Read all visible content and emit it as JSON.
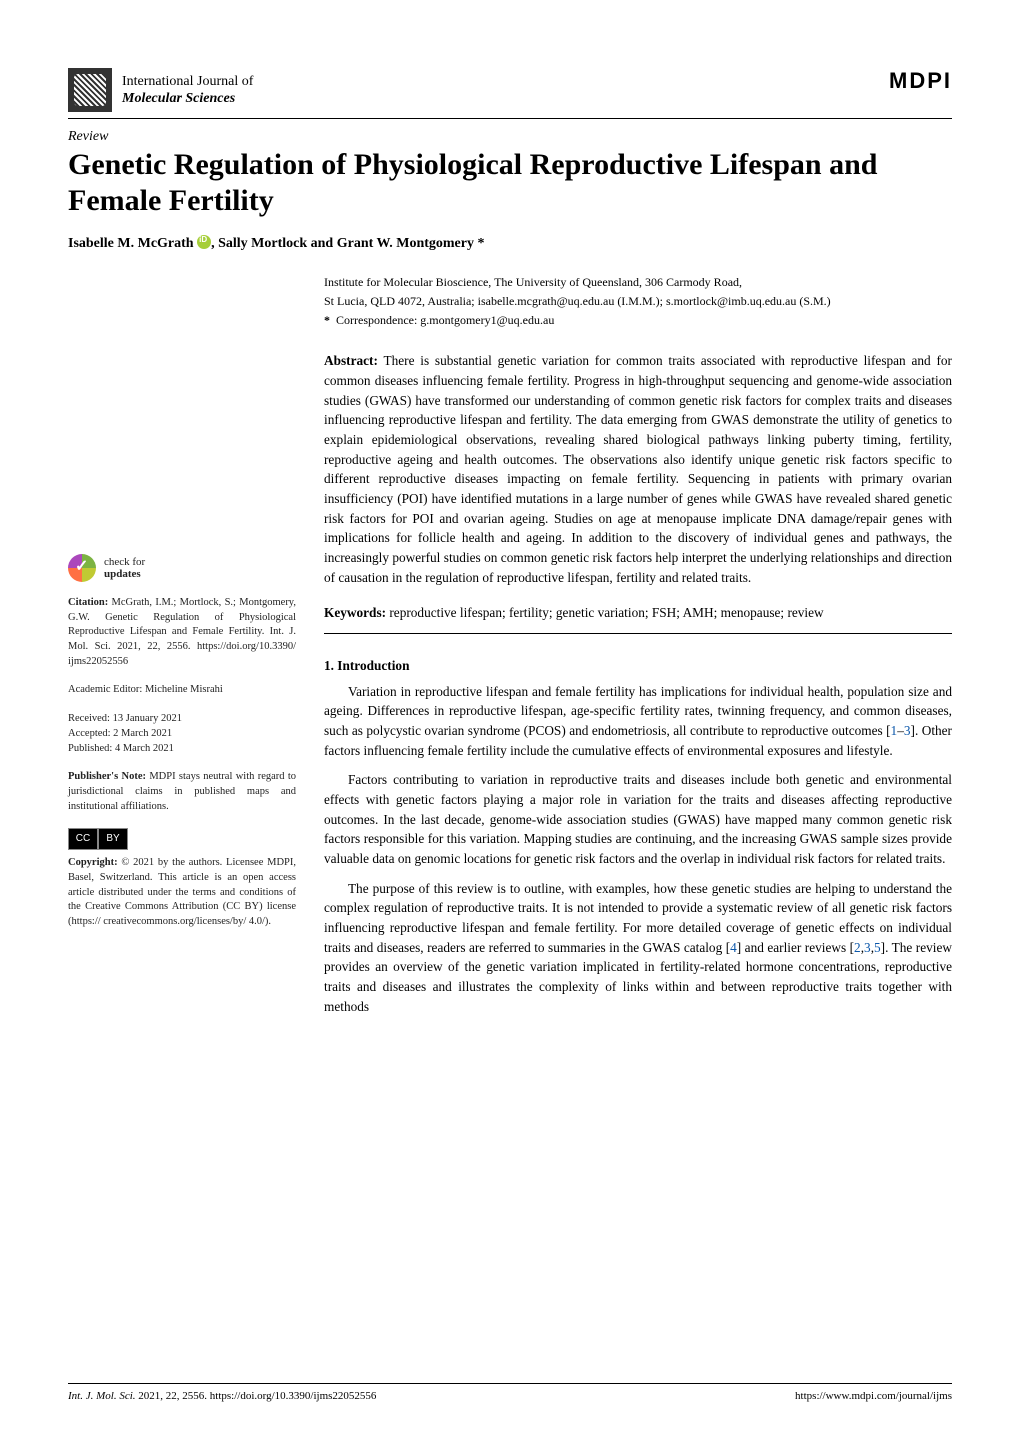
{
  "journal": {
    "line1": "International Journal of",
    "line2": "Molecular Sciences"
  },
  "publisher_logo": "MDPI",
  "article_type": "Review",
  "title": "Genetic Regulation of Physiological Reproductive Lifespan and Female Fertility",
  "authors_html": "Isabelle M. McGrath",
  "authors_suffix": ", Sally Mortlock and Grant W. Montgomery *",
  "affiliation": {
    "line1": "Institute for Molecular Bioscience, The University of Queensland, 306 Carmody Road,",
    "line2": "St Lucia, QLD 4072, Australia; isabelle.mcgrath@uq.edu.au (I.M.M.); s.mortlock@imb.uq.edu.au (S.M.)",
    "corr_label": "*",
    "corr": "Correspondence: g.montgomery1@uq.edu.au"
  },
  "abstract": {
    "label": "Abstract:",
    "text": "There is substantial genetic variation for common traits associated with reproductive lifespan and for common diseases influencing female fertility. Progress in high-throughput sequencing and genome-wide association studies (GWAS) have transformed our understanding of common genetic risk factors for complex traits and diseases influencing reproductive lifespan and fertility. The data emerging from GWAS demonstrate the utility of genetics to explain epidemiological observations, revealing shared biological pathways linking puberty timing, fertility, reproductive ageing and health outcomes. The observations also identify unique genetic risk factors specific to different reproductive diseases impacting on female fertility. Sequencing in patients with primary ovarian insufficiency (POI) have identified mutations in a large number of genes while GWAS have revealed shared genetic risk factors for POI and ovarian ageing. Studies on age at menopause implicate DNA damage/repair genes with implications for follicle health and ageing. In addition to the discovery of individual genes and pathways, the increasingly powerful studies on common genetic risk factors help interpret the underlying relationships and direction of causation in the regulation of reproductive lifespan, fertility and related traits."
  },
  "keywords": {
    "label": "Keywords:",
    "text": "reproductive lifespan; fertility; genetic variation; FSH; AMH; menopause; review"
  },
  "section1": {
    "heading": "1. Introduction",
    "p1a": "Variation in reproductive lifespan and female fertility has implications for individual health, population size and ageing. Differences in reproductive lifespan, age-specific fertility rates, twinning frequency, and common diseases, such as polycystic ovarian syndrome (PCOS) and endometriosis, all contribute to reproductive outcomes [",
    "p1_ref1": "1",
    "p1_dash": "–",
    "p1_ref3": "3",
    "p1b": "]. Other factors influencing female fertility include the cumulative effects of environmental exposures and lifestyle.",
    "p2": "Factors contributing to variation in reproductive traits and diseases include both genetic and environmental effects with genetic factors playing a major role in variation for the traits and diseases affecting reproductive outcomes. In the last decade, genome-wide association studies (GWAS) have mapped many common genetic risk factors responsible for this variation. Mapping studies are continuing, and the increasing GWAS sample sizes provide valuable data on genomic locations for genetic risk factors and the overlap in individual risk factors for related traits.",
    "p3a": "The purpose of this review is to outline, with examples, how these genetic studies are helping to understand the complex regulation of reproductive traits. It is not intended to provide a systematic review of all genetic risk factors influencing reproductive lifespan and female fertility. For more detailed coverage of genetic effects on individual traits and diseases, readers are referred to summaries in the GWAS catalog [",
    "p3_ref4": "4",
    "p3b": "] and earlier reviews [",
    "p3_ref2": "2",
    "p3_ref3": "3",
    "p3_ref5": "5",
    "p3c": "]. The review provides an overview of the genetic variation implicated in fertility-related hormone concentrations, reproductive traits and diseases and illustrates the complexity of links within and between reproductive traits together with methods"
  },
  "sidebar": {
    "check_updates_line1": "check for",
    "check_updates_line2": "updates",
    "citation_label": "Citation:",
    "citation": "McGrath, I.M.; Mortlock, S.; Montgomery, G.W. Genetic Regulation of Physiological Reproductive Lifespan and Female Fertility. Int. J. Mol. Sci. 2021, 22, 2556. https://doi.org/10.3390/ ijms22052556",
    "editor_line": "Academic Editor: Micheline Misrahi",
    "received": "Received: 13 January 2021",
    "accepted": "Accepted: 2 March 2021",
    "published": "Published: 4 March 2021",
    "pub_note_label": "Publisher's Note:",
    "pub_note": "MDPI stays neutral with regard to jurisdictional claims in published maps and institutional affiliations.",
    "cc_cc": "CC",
    "cc_by": "BY",
    "copyright_label": "Copyright:",
    "copyright": "© 2021 by the authors. Licensee MDPI, Basel, Switzerland. This article is an open access article distributed under the terms and conditions of the Creative Commons Attribution (CC BY) license (https:// creativecommons.org/licenses/by/ 4.0/)."
  },
  "footer": {
    "left_italic": "Int. J. Mol. Sci.",
    "left_rest": " 2021, 22, 2556. https://doi.org/10.3390/ijms22052556",
    "right": "https://www.mdpi.com/journal/ijms"
  },
  "colors": {
    "link": "#0b57aa"
  }
}
